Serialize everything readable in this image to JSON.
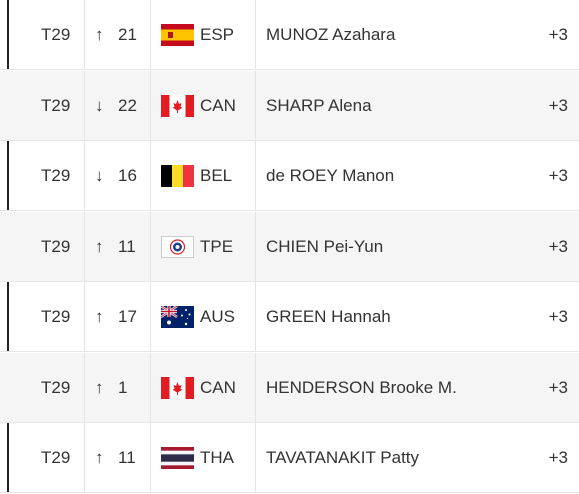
{
  "rows": [
    {
      "position": "T29",
      "arrow": "↑",
      "move": "21",
      "country": "ESP",
      "name": "MUNOZ Azahara",
      "score": "+3"
    },
    {
      "position": "T29",
      "arrow": "↓",
      "move": "22",
      "country": "CAN",
      "name": "SHARP Alena",
      "score": "+3"
    },
    {
      "position": "T29",
      "arrow": "↓",
      "move": "16",
      "country": "BEL",
      "name": "de ROEY Manon",
      "score": "+3"
    },
    {
      "position": "T29",
      "arrow": "↑",
      "move": "11",
      "country": "TPE",
      "name": "CHIEN Pei-Yun",
      "score": "+3"
    },
    {
      "position": "T29",
      "arrow": "↑",
      "move": "17",
      "country": "AUS",
      "name": "GREEN Hannah",
      "score": "+3"
    },
    {
      "position": "T29",
      "arrow": "↑",
      "move": "1",
      "country": "CAN",
      "name": "HENDERSON Brooke M.",
      "score": "+3"
    },
    {
      "position": "T29",
      "arrow": "↑",
      "move": "11",
      "country": "THA",
      "name": "TAVATANAKIT Patty",
      "score": "+3"
    }
  ]
}
